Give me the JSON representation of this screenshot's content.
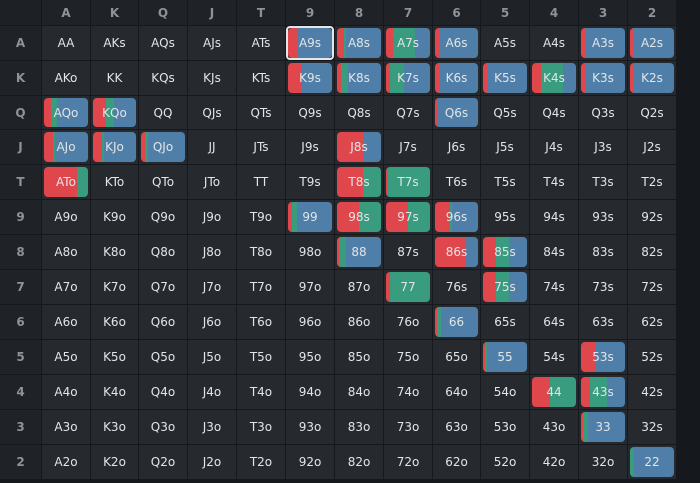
{
  "colors": {
    "raise": "#e0474c",
    "call": "#3a9c7f",
    "fold": "#4f7fa8"
  },
  "grid": {
    "col_headers": [
      "A",
      "K",
      "Q",
      "J",
      "T",
      "9",
      "8",
      "7",
      "6",
      "5",
      "4",
      "3",
      "2"
    ],
    "row_headers": [
      "A",
      "K",
      "Q",
      "J",
      "T",
      "9",
      "8",
      "7",
      "6",
      "5",
      "4",
      "3",
      "2"
    ],
    "selected": "A9s",
    "rows": [
      [
        {
          "hand": "AA"
        },
        {
          "hand": "AKs"
        },
        {
          "hand": "AQs"
        },
        {
          "hand": "AJs"
        },
        {
          "hand": "ATs"
        },
        {
          "hand": "A9s",
          "mix": [
            0.2,
            0,
            0.8
          ]
        },
        {
          "hand": "A8s",
          "mix": [
            0.15,
            0.05,
            0.8
          ]
        },
        {
          "hand": "A7s",
          "mix": [
            0.15,
            0.5,
            0.35
          ]
        },
        {
          "hand": "A6s",
          "mix": [
            0.1,
            0,
            0.9
          ]
        },
        {
          "hand": "A5s"
        },
        {
          "hand": "A4s"
        },
        {
          "hand": "A3s",
          "mix": [
            0.1,
            0,
            0.9
          ]
        },
        {
          "hand": "A2s",
          "mix": [
            0.1,
            0,
            0.9
          ]
        }
      ],
      [
        {
          "hand": "AKo"
        },
        {
          "hand": "KK"
        },
        {
          "hand": "KQs"
        },
        {
          "hand": "KJs"
        },
        {
          "hand": "KTs"
        },
        {
          "hand": "K9s",
          "mix": [
            0.3,
            0,
            0.7
          ]
        },
        {
          "hand": "K8s",
          "mix": [
            0.1,
            0.15,
            0.75
          ]
        },
        {
          "hand": "K7s",
          "mix": [
            0.1,
            0.3,
            0.6
          ]
        },
        {
          "hand": "K6s",
          "mix": [
            0.1,
            0,
            0.9
          ]
        },
        {
          "hand": "K5s",
          "mix": [
            0.1,
            0,
            0.9
          ]
        },
        {
          "hand": "K4s",
          "mix": [
            0.2,
            0.5,
            0.3
          ]
        },
        {
          "hand": "K3s",
          "mix": [
            0.1,
            0,
            0.9
          ]
        },
        {
          "hand": "K2s",
          "mix": [
            0.1,
            0,
            0.9
          ]
        }
      ],
      [
        {
          "hand": "AQo",
          "mix": [
            0.15,
            0.15,
            0.7
          ]
        },
        {
          "hand": "KQo",
          "mix": [
            0.3,
            0.2,
            0.5
          ]
        },
        {
          "hand": "QQ"
        },
        {
          "hand": "QJs"
        },
        {
          "hand": "QTs"
        },
        {
          "hand": "Q9s"
        },
        {
          "hand": "Q8s"
        },
        {
          "hand": "Q7s"
        },
        {
          "hand": "Q6s",
          "mix": [
            0.05,
            0,
            0.95
          ]
        },
        {
          "hand": "Q5s"
        },
        {
          "hand": "Q4s"
        },
        {
          "hand": "Q3s"
        },
        {
          "hand": "Q2s"
        }
      ],
      [
        {
          "hand": "AJo",
          "mix": [
            0.2,
            0.05,
            0.75
          ]
        },
        {
          "hand": "KJo",
          "mix": [
            0.2,
            0.05,
            0.75
          ]
        },
        {
          "hand": "QJo",
          "mix": [
            0.1,
            0.05,
            0.85
          ]
        },
        {
          "hand": "JJ"
        },
        {
          "hand": "JTs"
        },
        {
          "hand": "J9s"
        },
        {
          "hand": "J8s",
          "mix": [
            0.6,
            0,
            0.4
          ]
        },
        {
          "hand": "J7s"
        },
        {
          "hand": "J6s"
        },
        {
          "hand": "J5s"
        },
        {
          "hand": "J4s"
        },
        {
          "hand": "J3s"
        },
        {
          "hand": "J2s"
        }
      ],
      [
        {
          "hand": "ATo",
          "mix": [
            0.75,
            0.25,
            0
          ]
        },
        {
          "hand": "KTo"
        },
        {
          "hand": "QTo"
        },
        {
          "hand": "JTo"
        },
        {
          "hand": "TT"
        },
        {
          "hand": "T9s"
        },
        {
          "hand": "T8s",
          "mix": [
            0.6,
            0.4,
            0
          ]
        },
        {
          "hand": "T7s",
          "mix": [
            0.05,
            0.95,
            0
          ]
        },
        {
          "hand": "T6s"
        },
        {
          "hand": "T5s"
        },
        {
          "hand": "T4s"
        },
        {
          "hand": "T3s"
        },
        {
          "hand": "T2s"
        }
      ],
      [
        {
          "hand": "A9o"
        },
        {
          "hand": "K9o"
        },
        {
          "hand": "Q9o"
        },
        {
          "hand": "J9o"
        },
        {
          "hand": "T9o"
        },
        {
          "hand": "99",
          "mix": [
            0.1,
            0.1,
            0.8
          ]
        },
        {
          "hand": "98s",
          "mix": [
            0.5,
            0.5,
            0
          ]
        },
        {
          "hand": "97s",
          "mix": [
            0.5,
            0.5,
            0
          ]
        },
        {
          "hand": "96s",
          "mix": [
            0.35,
            0.05,
            0.6
          ]
        },
        {
          "hand": "95s"
        },
        {
          "hand": "94s"
        },
        {
          "hand": "93s"
        },
        {
          "hand": "92s"
        }
      ],
      [
        {
          "hand": "A8o"
        },
        {
          "hand": "K8o"
        },
        {
          "hand": "Q8o"
        },
        {
          "hand": "J8o"
        },
        {
          "hand": "T8o"
        },
        {
          "hand": "98o"
        },
        {
          "hand": "88",
          "mix": [
            0.05,
            0.15,
            0.8
          ]
        },
        {
          "hand": "87s"
        },
        {
          "hand": "86s",
          "mix": [
            0.7,
            0,
            0.3
          ]
        },
        {
          "hand": "85s",
          "mix": [
            0.3,
            0.3,
            0.4
          ]
        },
        {
          "hand": "84s"
        },
        {
          "hand": "83s"
        },
        {
          "hand": "82s"
        }
      ],
      [
        {
          "hand": "A7o"
        },
        {
          "hand": "K7o"
        },
        {
          "hand": "Q7o"
        },
        {
          "hand": "J7o"
        },
        {
          "hand": "T7o"
        },
        {
          "hand": "97o"
        },
        {
          "hand": "87o"
        },
        {
          "hand": "77",
          "mix": [
            0.1,
            0.9,
            0
          ]
        },
        {
          "hand": "76s"
        },
        {
          "hand": "75s",
          "mix": [
            0.3,
            0.3,
            0.4
          ]
        },
        {
          "hand": "74s"
        },
        {
          "hand": "73s"
        },
        {
          "hand": "72s"
        }
      ],
      [
        {
          "hand": "A6o"
        },
        {
          "hand": "K6o"
        },
        {
          "hand": "Q6o"
        },
        {
          "hand": "J6o"
        },
        {
          "hand": "T6o"
        },
        {
          "hand": "96o"
        },
        {
          "hand": "86o"
        },
        {
          "hand": "76o"
        },
        {
          "hand": "66",
          "mix": [
            0.05,
            0.1,
            0.85
          ]
        },
        {
          "hand": "65s"
        },
        {
          "hand": "64s"
        },
        {
          "hand": "63s"
        },
        {
          "hand": "62s"
        }
      ],
      [
        {
          "hand": "A5o"
        },
        {
          "hand": "K5o"
        },
        {
          "hand": "Q5o"
        },
        {
          "hand": "J5o"
        },
        {
          "hand": "T5o"
        },
        {
          "hand": "95o"
        },
        {
          "hand": "85o"
        },
        {
          "hand": "75o"
        },
        {
          "hand": "65o"
        },
        {
          "hand": "55",
          "mix": [
            0.05,
            0.05,
            0.9
          ]
        },
        {
          "hand": "54s"
        },
        {
          "hand": "53s",
          "mix": [
            0.35,
            0,
            0.65
          ]
        },
        {
          "hand": "52s"
        }
      ],
      [
        {
          "hand": "A4o"
        },
        {
          "hand": "K4o"
        },
        {
          "hand": "Q4o"
        },
        {
          "hand": "J4o"
        },
        {
          "hand": "T4o"
        },
        {
          "hand": "94o"
        },
        {
          "hand": "84o"
        },
        {
          "hand": "74o"
        },
        {
          "hand": "64o"
        },
        {
          "hand": "54o"
        },
        {
          "hand": "44",
          "mix": [
            0.4,
            0.6,
            0
          ]
        },
        {
          "hand": "43s",
          "mix": [
            0.2,
            0.4,
            0.4
          ]
        },
        {
          "hand": "42s"
        }
      ],
      [
        {
          "hand": "A3o"
        },
        {
          "hand": "K3o"
        },
        {
          "hand": "Q3o"
        },
        {
          "hand": "J3o"
        },
        {
          "hand": "T3o"
        },
        {
          "hand": "93o"
        },
        {
          "hand": "83o"
        },
        {
          "hand": "73o"
        },
        {
          "hand": "63o"
        },
        {
          "hand": "53o"
        },
        {
          "hand": "43o"
        },
        {
          "hand": "33",
          "mix": [
            0.05,
            0.1,
            0.85
          ]
        },
        {
          "hand": "32s"
        }
      ],
      [
        {
          "hand": "A2o"
        },
        {
          "hand": "K2o"
        },
        {
          "hand": "Q2o"
        },
        {
          "hand": "J2o"
        },
        {
          "hand": "T2o"
        },
        {
          "hand": "92o"
        },
        {
          "hand": "82o"
        },
        {
          "hand": "72o"
        },
        {
          "hand": "62o"
        },
        {
          "hand": "52o"
        },
        {
          "hand": "42o"
        },
        {
          "hand": "32o"
        },
        {
          "hand": "22",
          "mix": [
            0,
            0.1,
            0.9
          ]
        }
      ]
    ]
  }
}
